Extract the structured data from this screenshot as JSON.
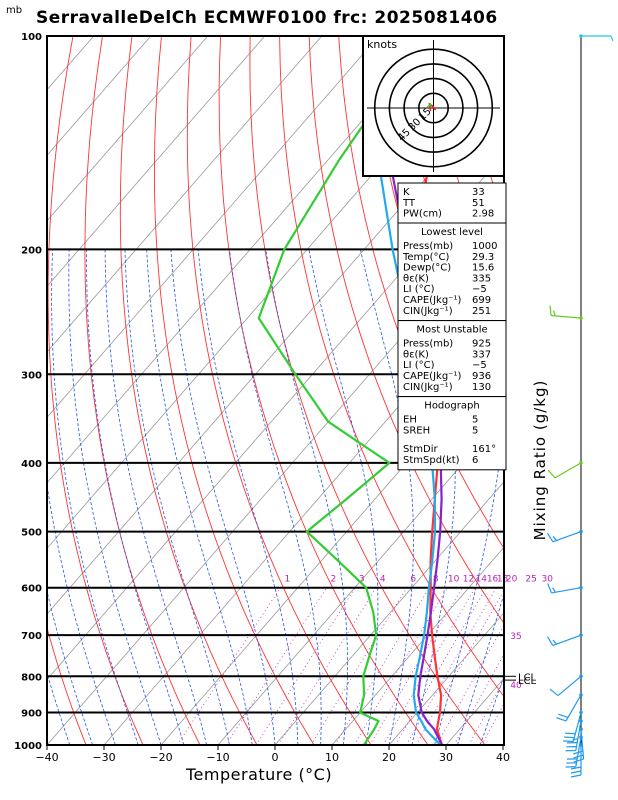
{
  "title": "SerravalleDelCh ECMWF0100 frc: 2025081406",
  "pressure_unit": "mb",
  "xlabel": "Temperature (°C)",
  "mixing_label": "Mixing Ratio (g/kg)",
  "colors": {
    "temperature": "#ff3333",
    "dewpoint": "#33cc33",
    "parcel": "#8822cc",
    "wetbulb": "#22aaee",
    "isotherm": "#999999",
    "dry_adiabat": "#ff3333",
    "moist_adiabat": "#2255ee",
    "mixing_ratio": "#bb22bb"
  },
  "hodograph": {
    "label": "knots",
    "ring_labels": [
      "15",
      "30",
      "45"
    ]
  },
  "lcl_labels": [
    "LCL",
    "LCL"
  ],
  "indices": {
    "top": [
      {
        "k": "K",
        "v": "33"
      },
      {
        "k": "TT",
        "v": "51"
      },
      {
        "k": "PW(cm)",
        "v": "2.98"
      }
    ],
    "lowest": {
      "header": "Lowest level",
      "rows": [
        {
          "k": "Press(mb)",
          "v": "1000"
        },
        {
          "k": "Temp(°C)",
          "v": "29.3"
        },
        {
          "k": "Dewp(°C)",
          "v": "15.6"
        },
        {
          "k": "θε(K)",
          "v": "335"
        },
        {
          "k": "LI (°C)",
          "v": "−5"
        },
        {
          "k": "CAPE(Jkg⁻¹)",
          "v": "699"
        },
        {
          "k": "CIN(Jkg⁻¹)",
          "v": "251"
        }
      ]
    },
    "unstable": {
      "header": "Most Unstable",
      "rows": [
        {
          "k": "Press(mb)",
          "v": "925"
        },
        {
          "k": "θε(K)",
          "v": "337"
        },
        {
          "k": "LI (°C)",
          "v": "−5"
        },
        {
          "k": "CAPE(Jkg⁻¹)",
          "v": "936"
        },
        {
          "k": "CIN(Jkg⁻¹)",
          "v": "130"
        }
      ]
    },
    "hodo": {
      "header": "Hodograph",
      "rows": [
        {
          "k": "EH",
          "v": "5"
        },
        {
          "k": "SREH",
          "v": "5"
        },
        {
          "k": "StmDir",
          "v": "161°"
        },
        {
          "k": "StmSpd(kt)",
          "v": "6"
        }
      ]
    }
  },
  "chart_data": {
    "type": "line",
    "chart_kind": "skew-T log-P sounding diagram",
    "x_axis": {
      "label": "Temperature (°C)",
      "range": [
        -40,
        40
      ],
      "ticks": [
        -40,
        -30,
        -20,
        -10,
        0,
        10,
        20,
        30,
        40
      ]
    },
    "y_axis": {
      "unit": "mb",
      "scale": "log",
      "range": [
        1000,
        100
      ],
      "ticks": [
        100,
        200,
        300,
        400,
        500,
        600,
        700,
        800,
        900,
        1000
      ]
    },
    "mixing_ratio_labels": [
      1,
      2,
      3,
      4,
      6,
      8,
      10,
      12,
      14,
      16,
      18,
      20,
      25,
      30,
      35,
      40
    ],
    "series": [
      {
        "kind": "temperature",
        "points": [
          [
            1000,
            29.3
          ],
          [
            950,
            26.0
          ],
          [
            925,
            25.0
          ],
          [
            900,
            24.0
          ],
          [
            850,
            21.5
          ],
          [
            800,
            18.0
          ],
          [
            750,
            14.5
          ],
          [
            700,
            10.8
          ],
          [
            650,
            7.0
          ],
          [
            600,
            3.3
          ],
          [
            550,
            -0.8
          ],
          [
            500,
            -5.0
          ],
          [
            450,
            -9.5
          ],
          [
            400,
            -14.5
          ],
          [
            350,
            -21.0
          ],
          [
            300,
            -29.5
          ],
          [
            250,
            -41.0
          ],
          [
            200,
            -51.5
          ],
          [
            150,
            -62.0
          ],
          [
            100,
            -72.5
          ]
        ]
      },
      {
        "kind": "dewpoint",
        "points": [
          [
            1000,
            15.6
          ],
          [
            950,
            15.0
          ],
          [
            925,
            14.5
          ],
          [
            900,
            10.0
          ],
          [
            850,
            8.0
          ],
          [
            800,
            5.0
          ],
          [
            750,
            3.0
          ],
          [
            700,
            1.0
          ],
          [
            650,
            -3.0
          ],
          [
            600,
            -8.0
          ],
          [
            550,
            -17.0
          ],
          [
            500,
            -27.0
          ],
          [
            450,
            -25.0
          ],
          [
            400,
            -23.0
          ],
          [
            350,
            -40.0
          ],
          [
            300,
            -53.0
          ],
          [
            250,
            -68.0
          ],
          [
            200,
            -74.0
          ],
          [
            150,
            -78.0
          ],
          [
            100,
            -82.0
          ]
        ]
      },
      {
        "kind": "parcel",
        "points": [
          [
            1000,
            29.3
          ],
          [
            950,
            25.5
          ],
          [
            925,
            23.0
          ],
          [
            900,
            20.8
          ],
          [
            850,
            17.5
          ],
          [
            800,
            15.0
          ],
          [
            750,
            12.6
          ],
          [
            700,
            10.0
          ],
          [
            650,
            7.1
          ],
          [
            600,
            3.9
          ],
          [
            550,
            0.4
          ],
          [
            500,
            -3.6
          ],
          [
            450,
            -8.3
          ],
          [
            400,
            -14.0
          ],
          [
            350,
            -20.7
          ],
          [
            300,
            -29.0
          ],
          [
            250,
            -39.7
          ],
          [
            200,
            -52.5
          ],
          [
            150,
            -69.0
          ],
          [
            120,
            -80.0
          ]
        ]
      },
      {
        "kind": "wetbulb",
        "points": [
          [
            1000,
            29.0
          ],
          [
            950,
            24.0
          ],
          [
            925,
            22.0
          ],
          [
            900,
            19.8
          ],
          [
            850,
            16.7
          ],
          [
            800,
            14.2
          ],
          [
            750,
            11.9
          ],
          [
            700,
            9.4
          ],
          [
            650,
            6.4
          ],
          [
            600,
            3.0
          ],
          [
            550,
            -0.5
          ],
          [
            500,
            -4.5
          ],
          [
            450,
            -9.5
          ],
          [
            400,
            -15.5
          ],
          [
            350,
            -22.5
          ],
          [
            300,
            -31.0
          ],
          [
            250,
            -42.0
          ],
          [
            200,
            -55.0
          ],
          [
            150,
            -71.0
          ],
          [
            120,
            -82.0
          ]
        ]
      }
    ],
    "wind_barbs": [
      {
        "p": 1000,
        "dir": 180,
        "spd": 30
      },
      {
        "p": 975,
        "dir": 190,
        "spd": 30
      },
      {
        "p": 950,
        "dir": 175,
        "spd": 30
      },
      {
        "p": 925,
        "dir": 190,
        "spd": 35
      },
      {
        "p": 900,
        "dir": 195,
        "spd": 30
      },
      {
        "p": 850,
        "dir": 210,
        "spd": 20
      },
      {
        "p": 800,
        "dir": 230,
        "spd": 10
      },
      {
        "p": 700,
        "dir": 250,
        "spd": 15
      },
      {
        "p": 600,
        "dir": 260,
        "spd": 15
      },
      {
        "p": 500,
        "dir": 250,
        "spd": 15
      },
      {
        "p": 400,
        "dir": 240,
        "spd": 10
      },
      {
        "p": 250,
        "dir": 275,
        "spd": 15
      },
      {
        "p": 100,
        "dir": 90,
        "spd": 5
      }
    ]
  }
}
